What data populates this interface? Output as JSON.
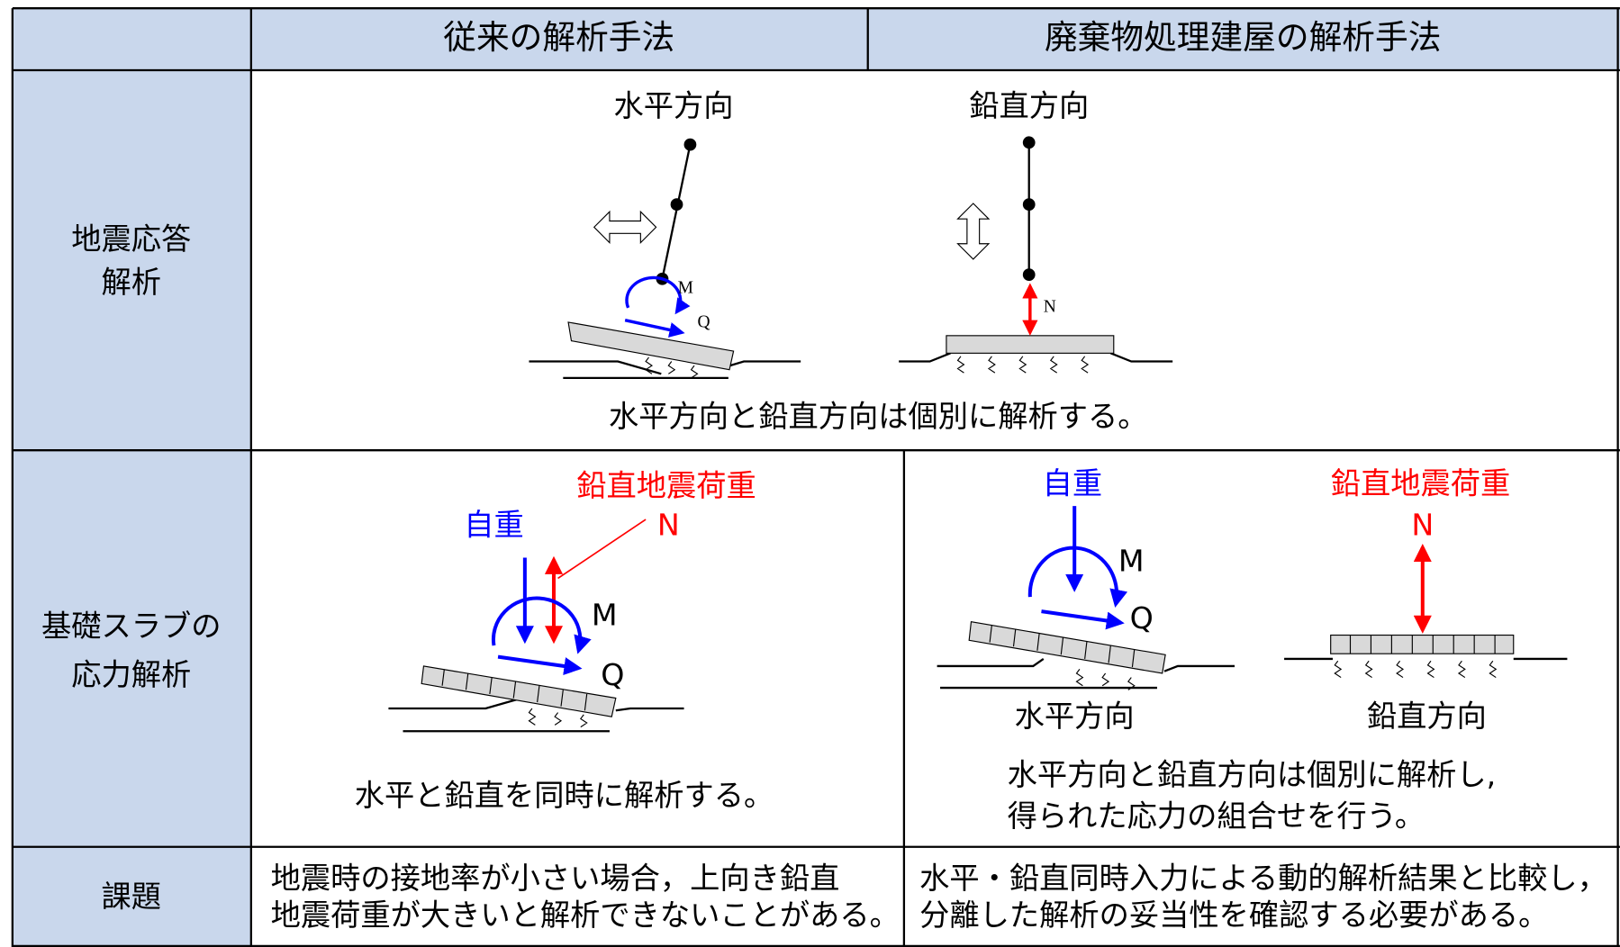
{
  "header": {
    "col1": "従来の解析手法",
    "col2": "廃棄物処理建屋の解析手法"
  },
  "rows": [
    {
      "label": [
        "地震応答",
        "解析"
      ],
      "diagram": {
        "horizontal": "水平方向",
        "vertical": "鉛直方向",
        "m": "M",
        "q": "Q",
        "n": "N"
      },
      "caption": "水平方向と鉛直方向は個別に解析する。"
    },
    {
      "label": [
        "基礎スラブの",
        "応力解析"
      ],
      "left": {
        "seismic_load": "鉛直地震荷重",
        "n": "N",
        "self_weight": "自重",
        "m": "M",
        "q": "Q",
        "caption": "水平と鉛直を同時に解析する。"
      },
      "right": {
        "self_weight": "自重",
        "m": "M",
        "q": "Q",
        "horizontal": "水平方向",
        "seismic_load": "鉛直地震荷重",
        "n": "N",
        "vertical": "鉛直方向",
        "caption": [
          "水平方向と鉛直方向は個別に解析し,",
          "得られた応力の組合せを行う。"
        ]
      }
    },
    {
      "label": "課題",
      "left": [
        "地震時の接地率が小さい場合，上向き鉛直",
        "地震荷重が大きいと解析できないことがある。"
      ],
      "right": [
        "水平・鉛直同時入力による動的解析結果と比較し，",
        "分離した解析の妥当性を確認する必要がある。"
      ]
    }
  ]
}
